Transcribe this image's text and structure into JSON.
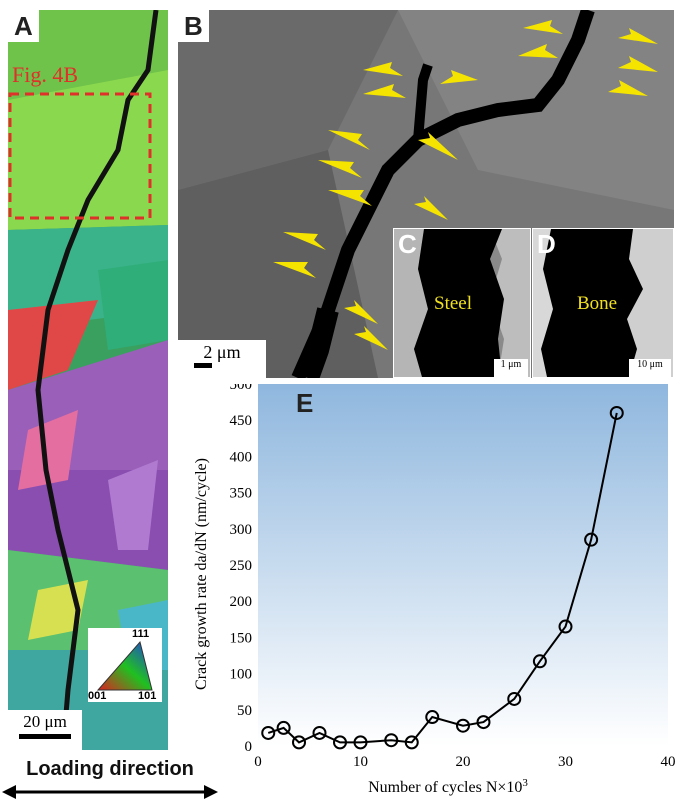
{
  "panel_a": {
    "label": "A",
    "region_label": "Fig. 4B",
    "scale_bar": "20 μm",
    "ipf_key": {
      "top": "111",
      "left": "001",
      "right": "101"
    }
  },
  "panel_b": {
    "label": "B",
    "scale_bar": "2 μm"
  },
  "panel_c": {
    "label": "C",
    "text": "Steel",
    "scale_bar": "1 μm"
  },
  "panel_d": {
    "label": "D",
    "text": "Bone",
    "scale_bar": "10 μm"
  },
  "loading": {
    "text": "Loading direction"
  },
  "colors": {
    "arrow": "#f5e400",
    "dashed_box": "#e0302a",
    "chart_line": "#000000",
    "chart_bg_top": "#8fb7de",
    "chart_bg_bottom": "#ffffff"
  },
  "chart_data": {
    "type": "line",
    "panel_label": "E",
    "xlabel": "Number of cycles N×10",
    "xlabel_superscript": "3",
    "ylabel": "Crack growth rate da/dN (nm/cycle)",
    "xlim": [
      0,
      40
    ],
    "ylim": [
      0,
      500
    ],
    "x_ticks": [
      0,
      10,
      20,
      30,
      40
    ],
    "y_ticks": [
      0,
      50,
      100,
      150,
      200,
      250,
      300,
      350,
      400,
      450,
      500
    ],
    "marker": "open-circle",
    "series": [
      {
        "x": [
          1,
          2.5,
          4,
          6,
          8,
          10,
          13,
          15,
          17,
          20,
          22,
          25,
          27.5,
          30,
          32.5,
          35
        ],
        "y": [
          18,
          25,
          5,
          18,
          5,
          5,
          8,
          5,
          40,
          28,
          33,
          65,
          117,
          165,
          285,
          460
        ]
      }
    ]
  }
}
